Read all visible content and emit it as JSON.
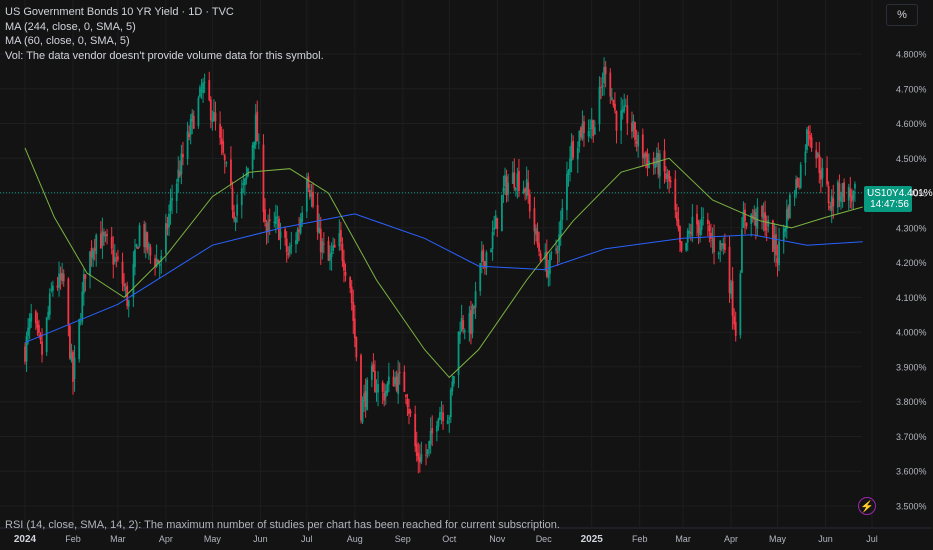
{
  "legend": {
    "title": "US Government Bonds 10 YR Yield · 1D · TVC",
    "ma1": "MA (244, close, 0, SMA, 5)",
    "ma2": "MA (60, close, 0, SMA, 5)",
    "vol": "Vol: The data vendor doesn't provide volume data for this symbol."
  },
  "rsi_note": "RSI (14, close, SMA, 14, 2): The maximum number of studies per chart has been reached for current subscription.",
  "scale_button": "%",
  "price_tag": {
    "symbol": "US10Y",
    "price": "4.401%",
    "countdown": "14:47:56"
  },
  "colors": {
    "up": "#089981",
    "down": "#f23645",
    "ma244": "#2962ff",
    "ma60": "#7cb342",
    "background": "#131313",
    "grid": "#1e1e1e",
    "axis_text": "#b2b5be"
  },
  "chart_data": {
    "type": "candlestick",
    "title": "US Government Bonds 10 YR Yield · 1D · TVC",
    "x_labels": [
      "2024",
      "Feb",
      "Mar",
      "Apr",
      "May",
      "Jun",
      "Jul",
      "Aug",
      "Sep",
      "Oct",
      "Nov",
      "Dec",
      "2025",
      "Feb",
      "Mar",
      "Apr",
      "May",
      "Jun",
      "Jul"
    ],
    "y_ticks": [
      "4.800%",
      "4.700%",
      "4.600%",
      "4.500%",
      "4.400%",
      "4.300%",
      "4.200%",
      "4.100%",
      "4.000%",
      "3.900%",
      "3.800%",
      "3.700%",
      "3.600%",
      "3.500%"
    ],
    "ylim": [
      3.48,
      4.88
    ],
    "current_value": 4.401,
    "close_path": [
      {
        "date": "2024-01-01",
        "value": 3.95
      },
      {
        "date": "2024-01-05",
        "value": 4.04
      },
      {
        "date": "2024-01-12",
        "value": 3.94
      },
      {
        "date": "2024-01-19",
        "value": 4.14
      },
      {
        "date": "2024-01-26",
        "value": 4.14
      },
      {
        "date": "2024-02-01",
        "value": 3.86
      },
      {
        "date": "2024-02-09",
        "value": 4.18
      },
      {
        "date": "2024-02-16",
        "value": 4.28
      },
      {
        "date": "2024-02-23",
        "value": 4.25
      },
      {
        "date": "2024-03-01",
        "value": 4.19
      },
      {
        "date": "2024-03-08",
        "value": 4.08
      },
      {
        "date": "2024-03-15",
        "value": 4.3
      },
      {
        "date": "2024-03-22",
        "value": 4.22
      },
      {
        "date": "2024-03-29",
        "value": 4.2
      },
      {
        "date": "2024-04-05",
        "value": 4.39
      },
      {
        "date": "2024-04-12",
        "value": 4.5
      },
      {
        "date": "2024-04-19",
        "value": 4.62
      },
      {
        "date": "2024-04-25",
        "value": 4.7
      },
      {
        "date": "2024-05-01",
        "value": 4.63
      },
      {
        "date": "2024-05-08",
        "value": 4.5
      },
      {
        "date": "2024-05-15",
        "value": 4.35
      },
      {
        "date": "2024-05-22",
        "value": 4.42
      },
      {
        "date": "2024-05-29",
        "value": 4.6
      },
      {
        "date": "2024-06-05",
        "value": 4.29
      },
      {
        "date": "2024-06-12",
        "value": 4.31
      },
      {
        "date": "2024-06-19",
        "value": 4.22
      },
      {
        "date": "2024-06-26",
        "value": 4.3
      },
      {
        "date": "2024-07-01",
        "value": 4.47
      },
      {
        "date": "2024-07-08",
        "value": 4.28
      },
      {
        "date": "2024-07-15",
        "value": 4.2
      },
      {
        "date": "2024-07-22",
        "value": 4.26
      },
      {
        "date": "2024-07-29",
        "value": 4.14
      },
      {
        "date": "2024-08-05",
        "value": 3.78
      },
      {
        "date": "2024-08-12",
        "value": 3.87
      },
      {
        "date": "2024-08-19",
        "value": 3.82
      },
      {
        "date": "2024-08-26",
        "value": 3.87
      },
      {
        "date": "2024-09-03",
        "value": 3.84
      },
      {
        "date": "2024-09-10",
        "value": 3.64
      },
      {
        "date": "2024-09-17",
        "value": 3.65
      },
      {
        "date": "2024-09-24",
        "value": 3.78
      },
      {
        "date": "2024-10-01",
        "value": 3.77
      },
      {
        "date": "2024-10-08",
        "value": 4.03
      },
      {
        "date": "2024-10-15",
        "value": 4.02
      },
      {
        "date": "2024-10-22",
        "value": 4.2
      },
      {
        "date": "2024-10-29",
        "value": 4.27
      },
      {
        "date": "2024-11-06",
        "value": 4.42
      },
      {
        "date": "2024-11-13",
        "value": 4.45
      },
      {
        "date": "2024-11-20",
        "value": 4.41
      },
      {
        "date": "2024-11-27",
        "value": 4.25
      },
      {
        "date": "2024-12-04",
        "value": 4.18
      },
      {
        "date": "2024-12-11",
        "value": 4.27
      },
      {
        "date": "2024-12-18",
        "value": 4.52
      },
      {
        "date": "2024-12-26",
        "value": 4.59
      },
      {
        "date": "2025-01-03",
        "value": 4.6
      },
      {
        "date": "2025-01-10",
        "value": 4.77
      },
      {
        "date": "2025-01-17",
        "value": 4.61
      },
      {
        "date": "2025-01-24",
        "value": 4.62
      },
      {
        "date": "2025-01-31",
        "value": 4.54
      },
      {
        "date": "2025-02-07",
        "value": 4.49
      },
      {
        "date": "2025-02-14",
        "value": 4.48
      },
      {
        "date": "2025-02-21",
        "value": 4.42
      },
      {
        "date": "2025-02-28",
        "value": 4.21
      },
      {
        "date": "2025-03-07",
        "value": 4.31
      },
      {
        "date": "2025-03-14",
        "value": 4.31
      },
      {
        "date": "2025-03-21",
        "value": 4.25
      },
      {
        "date": "2025-03-28",
        "value": 4.25
      },
      {
        "date": "2025-04-04",
        "value": 4.01
      },
      {
        "date": "2025-04-09",
        "value": 4.33
      },
      {
        "date": "2025-04-16",
        "value": 4.33
      },
      {
        "date": "2025-04-23",
        "value": 4.32
      },
      {
        "date": "2025-05-01",
        "value": 4.22
      },
      {
        "date": "2025-05-08",
        "value": 4.36
      },
      {
        "date": "2025-05-15",
        "value": 4.45
      },
      {
        "date": "2025-05-21",
        "value": 4.59
      },
      {
        "date": "2025-05-28",
        "value": 4.48
      },
      {
        "date": "2025-06-04",
        "value": 4.37
      },
      {
        "date": "2025-06-11",
        "value": 4.41
      },
      {
        "date": "2025-06-18",
        "value": 4.39
      },
      {
        "date": "2025-06-25",
        "value": 4.4
      }
    ],
    "ma_244": [
      {
        "date": "2024-01-01",
        "value": 3.97
      },
      {
        "date": "2024-03-01",
        "value": 4.08
      },
      {
        "date": "2024-05-01",
        "value": 4.25
      },
      {
        "date": "2024-06-15",
        "value": 4.3
      },
      {
        "date": "2024-08-01",
        "value": 4.34
      },
      {
        "date": "2024-09-15",
        "value": 4.27
      },
      {
        "date": "2024-10-20",
        "value": 4.19
      },
      {
        "date": "2024-12-01",
        "value": 4.18
      },
      {
        "date": "2025-01-10",
        "value": 4.24
      },
      {
        "date": "2025-03-01",
        "value": 4.27
      },
      {
        "date": "2025-04-15",
        "value": 4.28
      },
      {
        "date": "2025-05-20",
        "value": 4.25
      },
      {
        "date": "2025-06-25",
        "value": 4.26
      }
    ],
    "ma_60": [
      {
        "date": "2024-01-01",
        "value": 4.53
      },
      {
        "date": "2024-01-20",
        "value": 4.33
      },
      {
        "date": "2024-02-10",
        "value": 4.17
      },
      {
        "date": "2024-03-05",
        "value": 4.1
      },
      {
        "date": "2024-04-01",
        "value": 4.22
      },
      {
        "date": "2024-05-01",
        "value": 4.39
      },
      {
        "date": "2024-05-25",
        "value": 4.46
      },
      {
        "date": "2024-06-20",
        "value": 4.47
      },
      {
        "date": "2024-07-15",
        "value": 4.4
      },
      {
        "date": "2024-08-15",
        "value": 4.15
      },
      {
        "date": "2024-09-15",
        "value": 3.95
      },
      {
        "date": "2024-10-01",
        "value": 3.87
      },
      {
        "date": "2024-10-20",
        "value": 3.95
      },
      {
        "date": "2024-11-20",
        "value": 4.15
      },
      {
        "date": "2024-12-20",
        "value": 4.32
      },
      {
        "date": "2025-01-20",
        "value": 4.46
      },
      {
        "date": "2025-02-20",
        "value": 4.5
      },
      {
        "date": "2025-03-20",
        "value": 4.38
      },
      {
        "date": "2025-04-20",
        "value": 4.32
      },
      {
        "date": "2025-05-10",
        "value": 4.3
      },
      {
        "date": "2025-06-01",
        "value": 4.33
      },
      {
        "date": "2025-06-25",
        "value": 4.36
      }
    ]
  }
}
